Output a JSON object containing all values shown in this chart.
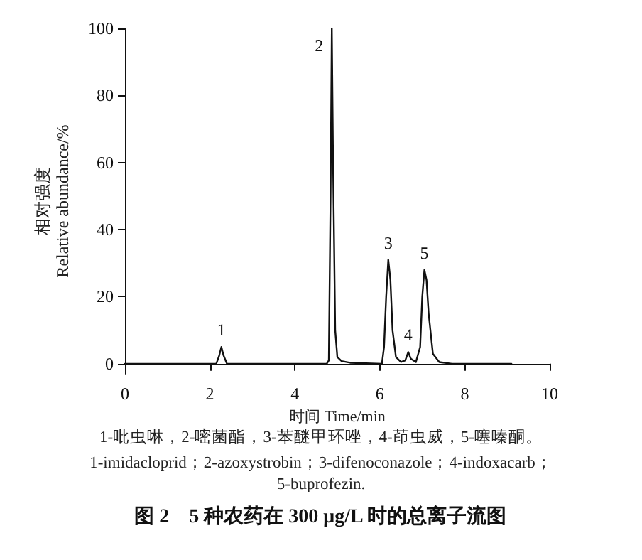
{
  "chart_data": {
    "type": "line",
    "title": "图 2　5 种农药在 300 μg/L 时的总离子流图",
    "xlabel": "时间 Time/min",
    "ylabel": "相对强度\nRelative abundance/%",
    "x": [
      0,
      2.15,
      2.22,
      2.27,
      2.32,
      2.4,
      4.75,
      4.8,
      4.84,
      4.87,
      4.9,
      4.95,
      5.0,
      5.1,
      5.3,
      6.05,
      6.1,
      6.15,
      6.2,
      6.25,
      6.3,
      6.38,
      6.5,
      6.6,
      6.67,
      6.73,
      6.85,
      6.95,
      7.0,
      7.05,
      7.1,
      7.15,
      7.25,
      7.4,
      7.7,
      9.1
    ],
    "series": [
      {
        "color": "#111111",
        "values": [
          0,
          0,
          2.5,
          5,
          2.5,
          0,
          0,
          1,
          50,
          100,
          60,
          10,
          2,
          0.8,
          0.3,
          0,
          5,
          20,
          31,
          25,
          10,
          2,
          0.5,
          1,
          3.5,
          1.5,
          0.5,
          5,
          20,
          28,
          25,
          15,
          3,
          0.5,
          0,
          0
        ]
      }
    ],
    "xlim": [
      0,
      10
    ],
    "xticks": [
      0,
      2,
      4,
      6,
      8,
      10
    ],
    "ylim": [
      -3,
      100
    ],
    "yticks": [
      0,
      20,
      40,
      60,
      80,
      100
    ],
    "grid": false,
    "marker": "none",
    "line_style": "solid",
    "annotations": [
      {
        "text": "1",
        "x": 2.27,
        "y": 5
      },
      {
        "text": "2",
        "x": 4.87,
        "y": 100
      },
      {
        "text": "3",
        "x": 6.2,
        "y": 31
      },
      {
        "text": "4",
        "x": 6.67,
        "y": 3.5
      },
      {
        "text": "5",
        "x": 7.05,
        "y": 28
      },
      "1-吡虫啉，2-嘧菌酯，3-苯醚甲环唑，4-茚虫威，5-噻嗪酮。",
      "1-imidacloprid；2-azoxystrobin；3-difenoconazole；4-indoxacarb；",
      "5-buprofezin."
    ]
  }
}
